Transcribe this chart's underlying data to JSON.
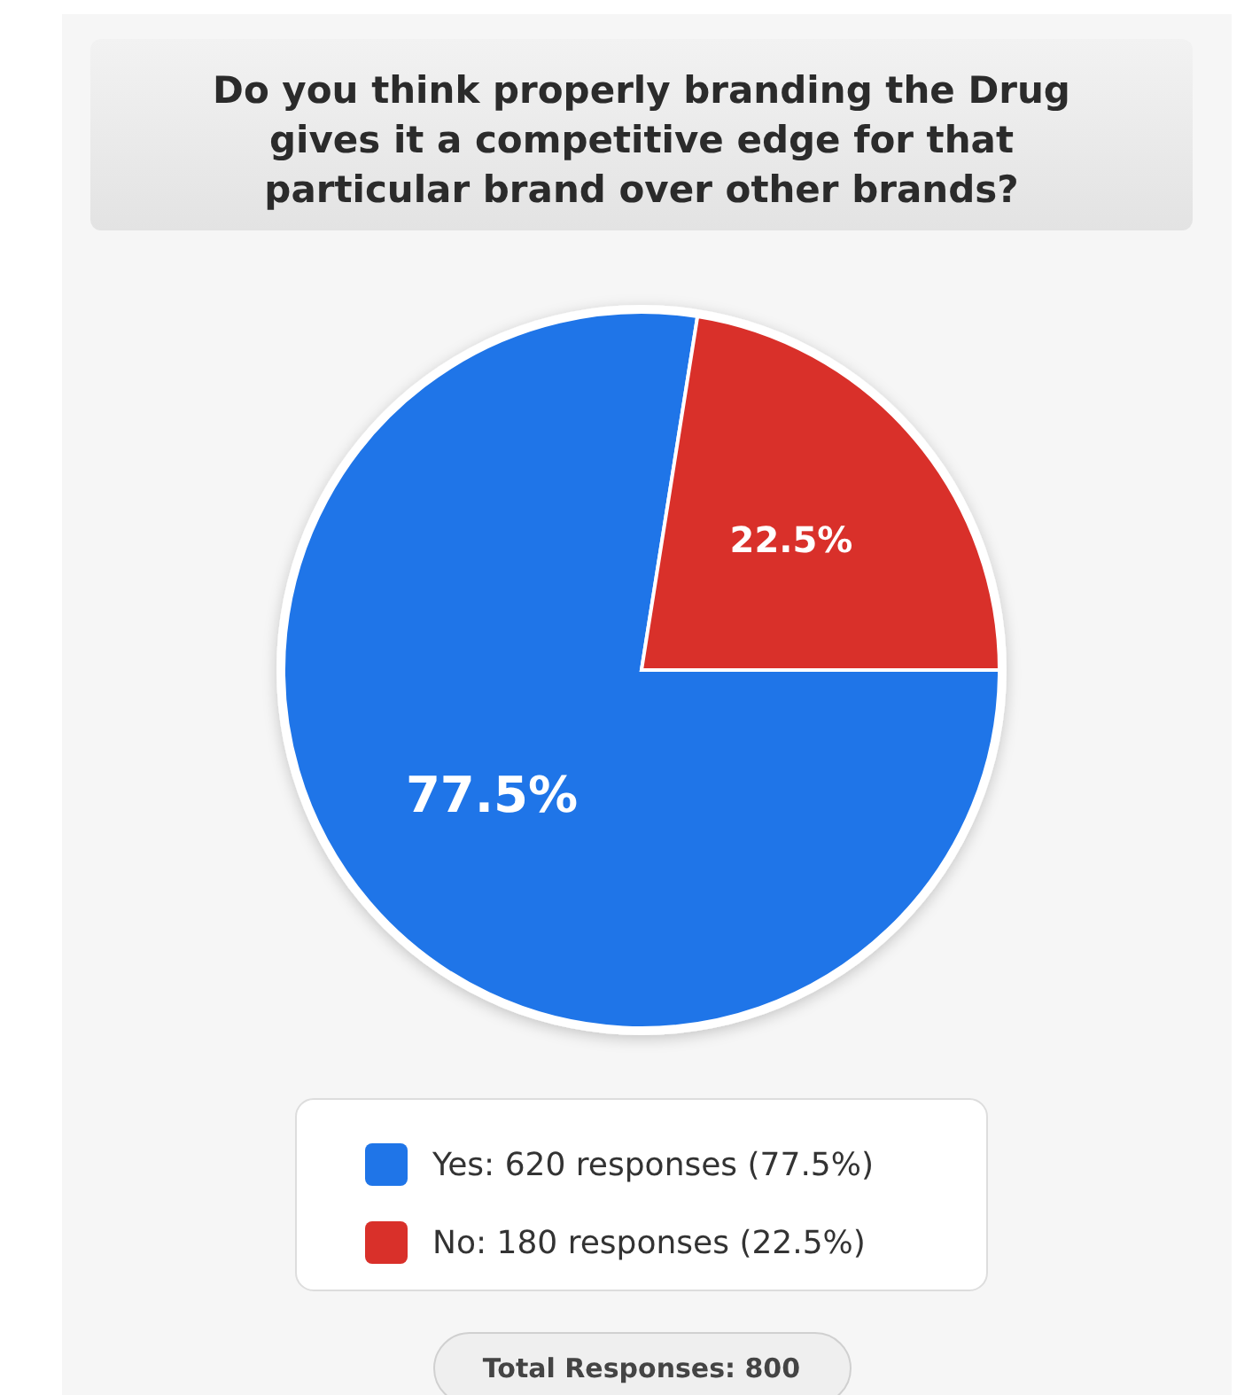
{
  "chart_data": {
    "type": "pie",
    "title": "Do you think properly branding the Drug gives it a competitive edge for that particular brand over other brands?",
    "categories": [
      "Yes: 620 responses (77.5%)",
      "No: 180 responses (22.5%)"
    ],
    "values": [
      77.5,
      22.5
    ],
    "value_labels": [
      "77.5%",
      "22.5%"
    ],
    "colors": [
      "#1f75e8",
      "#d9302a"
    ],
    "legend": "bottom",
    "annotations": [
      "Total Responses: 800"
    ]
  }
}
